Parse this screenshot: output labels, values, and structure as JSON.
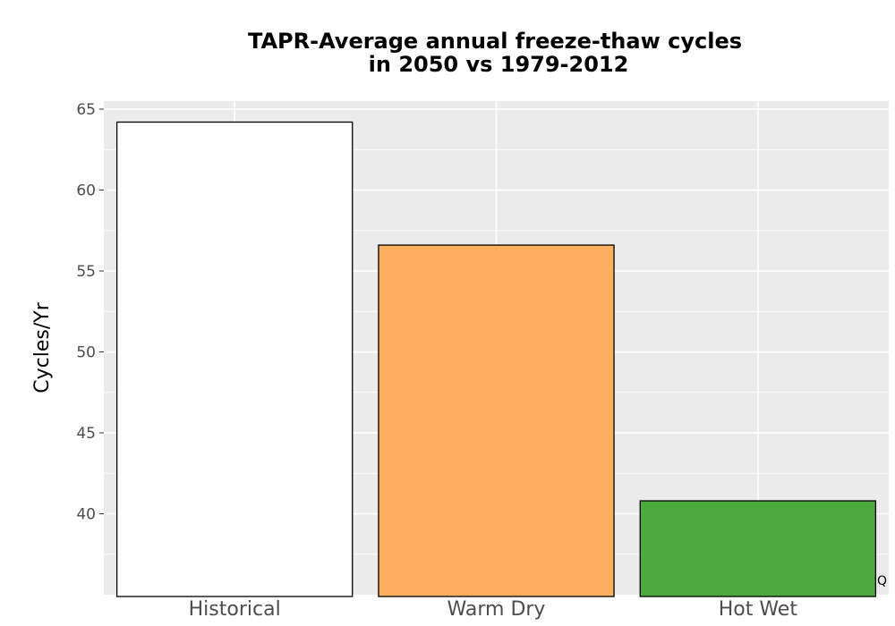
{
  "chart_data": {
    "type": "bar",
    "title_lines": [
      "TAPR-Average annual freeze-thaw cycles",
      "in 2050 vs 1979-2012"
    ],
    "xlabel": "",
    "ylabel": "Cycles/Yr",
    "categories": [
      "Historical",
      "Warm Dry",
      "Hot Wet"
    ],
    "values": [
      64.2,
      56.6,
      40.8
    ],
    "colors": [
      "#ffffff",
      "#fdae61",
      "#4daa3f"
    ],
    "ylim": [
      35,
      65.5
    ],
    "yticks": [
      40,
      45,
      50,
      55,
      60,
      65
    ],
    "grid": true,
    "legend": "none",
    "corner_mark": "Q"
  }
}
